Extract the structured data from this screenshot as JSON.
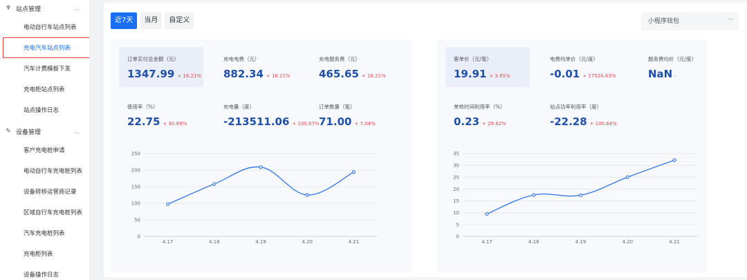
{
  "sidebar": {
    "groups": [
      {
        "label": "站点管理",
        "icon": "bicycle-icon",
        "items": [
          {
            "label": "电动自行车站点列表"
          },
          {
            "label": "充电汽车站点列表"
          },
          {
            "label": "汽车计费模板下发"
          },
          {
            "label": "充电柜站点列表"
          },
          {
            "label": "站点操作日志"
          }
        ]
      },
      {
        "label": "设备管理",
        "icon": "edit-icon",
        "items": [
          {
            "label": "客户充电桩申请"
          },
          {
            "label": "电动自行车充电桩列表"
          },
          {
            "label": "设备转移运营商记录"
          },
          {
            "label": "区域自行车充电桩列表"
          },
          {
            "label": "汽车充电桩列表"
          },
          {
            "label": "充电柜列表"
          },
          {
            "label": "设备操作日志"
          }
        ]
      }
    ],
    "active_item": "充电汽车站点列表"
  },
  "toolbar": {
    "tabs": [
      {
        "label": "近7天"
      },
      {
        "label": "当月"
      },
      {
        "label": "自定义"
      }
    ],
    "active_tab": "近7天"
  },
  "wallet_select": {
    "value": "小程序钱包"
  },
  "left_stats": [
    {
      "label": "订单实付总金额（元）",
      "value": "1347.99",
      "change": "+ 16.21%"
    },
    {
      "label": "充电电费（元）",
      "value": "882.34",
      "change": "+ 16.21%"
    },
    {
      "label": "充电服务费（元）",
      "value": "465.65",
      "change": "+ 16.21%"
    },
    {
      "label": "使用率（%）",
      "value": "22.75",
      "change": "+ 30.89%"
    },
    {
      "label": "充电量（度）",
      "value": "-213511.06",
      "change": "+ 100.67%"
    },
    {
      "label": "订单数量（笔）",
      "value": "71.00",
      "change": "+ 7.04%"
    }
  ],
  "right_stats": [
    {
      "label": "客单价（元/笔）",
      "value": "19.91",
      "change": "+ 3.65%"
    },
    {
      "label": "电费均单价（元/度）",
      "value": "-0.01",
      "change": "+ 17524.63%"
    },
    {
      "label": "服务费均价（元/度）",
      "value": "NaN",
      "change": "--"
    },
    {
      "label": "单枪时间利用率（%）",
      "value": "0.23",
      "change": "+ 29.82%"
    },
    {
      "label": "站点功率利用率（度）",
      "value": "-22.28",
      "change": "+ 100.64%"
    }
  ],
  "colors": {
    "accent": "#1a6ff0",
    "value": "#1f4fa8",
    "up": "#e5484d",
    "line": "#3b7be8"
  },
  "chart_data": [
    {
      "type": "line",
      "categories": [
        "4.17",
        "4.18",
        "4.19",
        "4.20",
        "4.21"
      ],
      "values": [
        97,
        158,
        209,
        125,
        194
      ],
      "ylim": [
        0,
        250
      ],
      "yticks": [
        0,
        50,
        100,
        150,
        200,
        250
      ],
      "grid": true
    },
    {
      "type": "line",
      "categories": [
        "4.17",
        "4.18",
        "4.19",
        "4.20",
        "4.21"
      ],
      "values": [
        9.5,
        17.5,
        17.4,
        25,
        32.2
      ],
      "ylim": [
        0,
        35
      ],
      "yticks": [
        0,
        5,
        10,
        15,
        20,
        25,
        30,
        35
      ],
      "grid": true
    }
  ]
}
